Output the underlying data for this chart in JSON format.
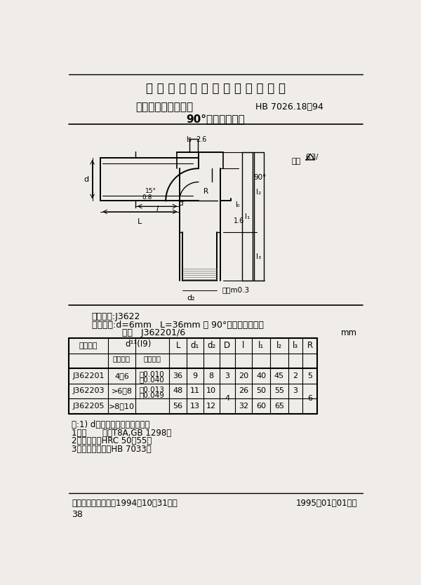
{
  "title_main": "中 华 人 民 共 和 国 航 空 工 业 标 准",
  "title_sub1": "夹具通用元件定位件",
  "title_sub2": "90°弯柄定位插销",
  "std_number": "HB 7026.18－94",
  "classify": "分类代号:J3622",
  "example_label": "标记示例:d=6mm   L=36mm 的 90°弯柄定位插销：",
  "example_pin": "插销   J362201/6",
  "unit_label": "mm",
  "notes": [
    "注:1) d的基本尺寸由设计确定。",
    "1．材      料：T8A,GB 1298。",
    "2．热处理：HRC 50～55。",
    "3．技术条件：按HB 7033。"
  ],
  "footer_left": "中国航空工业总公司1994－10－31发布",
  "footer_right": "1995－01－01实施",
  "page_num": "38",
  "bg_color": "#f0ede8"
}
